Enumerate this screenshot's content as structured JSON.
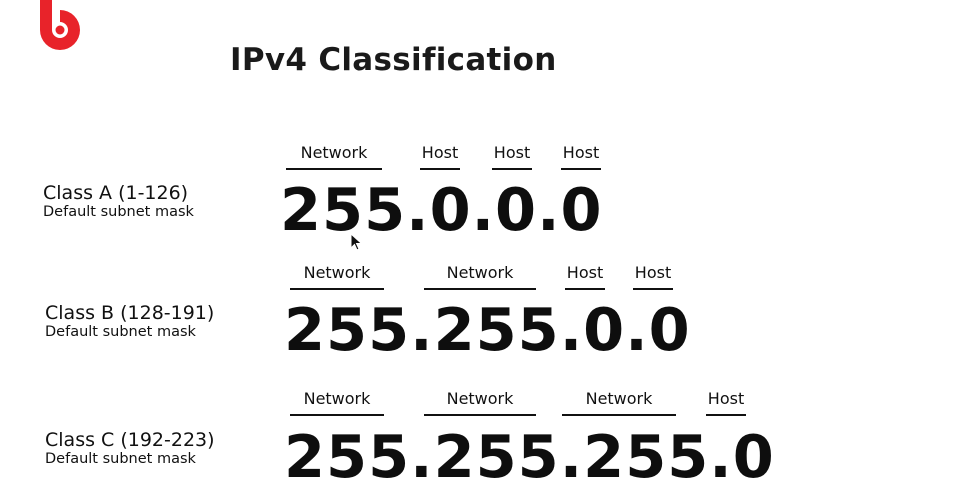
{
  "title": "IPv4 Classification",
  "classes": [
    {
      "name": "Class A (1-126)",
      "subtitle": "Default subnet mask",
      "mask": "255.0.0.0",
      "segments": [
        "Network",
        "Host",
        "Host",
        "Host"
      ]
    },
    {
      "name": "Class B (128-191)",
      "subtitle": "Default subnet mask",
      "mask": "255.255.0.0",
      "segments": [
        "Network",
        "Network",
        "Host",
        "Host"
      ]
    },
    {
      "name": "Class C (192-223)",
      "subtitle": "Default subnet mask",
      "mask": "255.255.255.0",
      "segments": [
        "Network",
        "Network",
        "Network",
        "Host"
      ]
    }
  ],
  "colors": {
    "logo": "#e8232a",
    "text": "#111111",
    "background": "#ffffff"
  },
  "icons": {
    "logo": "brand-logo-icon",
    "cursor": "mouse-cursor-icon"
  }
}
